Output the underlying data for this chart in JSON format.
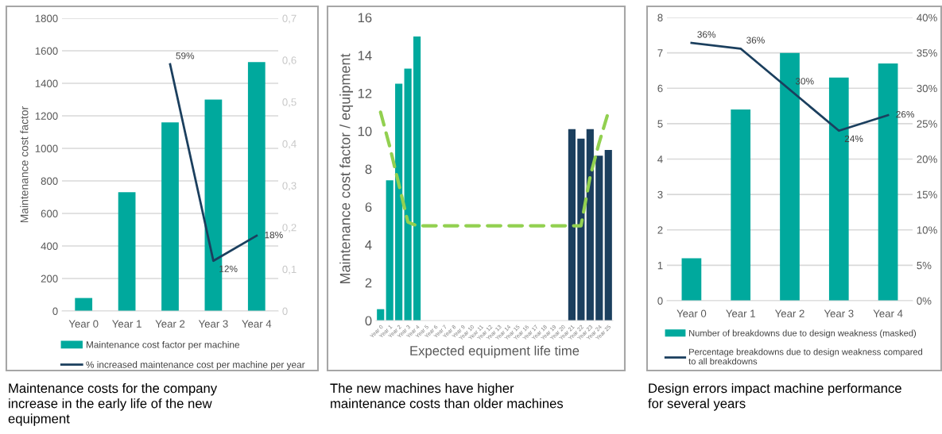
{
  "chart_data": [
    {
      "type": "bar",
      "categories": [
        "Year 0",
        "Year 1",
        "Year 2",
        "Year 3",
        "Year 4"
      ],
      "ylabel": "Maintenance cost factor",
      "ylim": [
        0,
        1800
      ],
      "yticks": [
        0,
        200,
        400,
        600,
        800,
        1000,
        1200,
        1400,
        1600,
        1800
      ],
      "y2lim": [
        0,
        0.7
      ],
      "y2ticks": [
        0,
        {
          "value": 0.1,
          "label": "0,1"
        },
        {
          "value": 0.2,
          "label": "0,2"
        },
        {
          "value": 0.3,
          "label": "0,3"
        },
        {
          "value": 0.4,
          "label": "0,4"
        },
        {
          "value": 0.5,
          "label": "0,5"
        },
        {
          "value": 0.6,
          "label": "0,6"
        },
        {
          "value": 0.7,
          "label": "0,7"
        }
      ],
      "grid": "y",
      "legend": "bottom",
      "series": [
        {
          "name": "Maintenance cost factor per machine",
          "color": "#00a99d",
          "values": [
            80,
            730,
            1160,
            1300,
            1530
          ]
        },
        {
          "name": "% increased maintenance cost per machine per year",
          "type": "line",
          "axis": "y2",
          "color": "#1b3f5e",
          "values": [
            null,
            null,
            0.59,
            0.12,
            0.18
          ],
          "value_labels": [
            null,
            null,
            "59%",
            "12%",
            "18%"
          ]
        }
      ],
      "annotations": [
        "Maintenance costs for the company\nincrease in the early life of the new\nequipment"
      ]
    },
    {
      "type": "bar",
      "categories": [
        "Year 0",
        "Year 1",
        "Year 2",
        "Year 3",
        "Year 4",
        "Year 5",
        "Year 6",
        "Year 7",
        "Year 8",
        "Year 9",
        "Year 10",
        "Year 11",
        "Year 12",
        "Year 13",
        "Year 14",
        "Year 15",
        "Year 16",
        "Year 17",
        "Year 18",
        "Year 19",
        "Year 20",
        "Year 21",
        "Year 22",
        "Year 23",
        "Year 24",
        "Year 25"
      ],
      "ylabel": "Maintenance cost factor / equipment",
      "xlabel": "Expected equipment life time",
      "ylim": [
        0,
        16
      ],
      "yticks": [
        0,
        2,
        4,
        6,
        8,
        10,
        12,
        14,
        16
      ],
      "grid": false,
      "legend": false,
      "series": [
        {
          "colors": [
            "#00a99d",
            "#00a99d",
            "#00a99d",
            "#00a99d",
            "#00a99d",
            null,
            null,
            null,
            null,
            null,
            null,
            null,
            null,
            null,
            null,
            null,
            null,
            null,
            null,
            null,
            null,
            "#1b3f5e",
            "#1b3f5e",
            "#1b3f5e",
            "#1b3f5e",
            "#1b3f5e"
          ],
          "values": [
            0.6,
            7.4,
            12.5,
            13.3,
            15,
            null,
            null,
            null,
            null,
            null,
            null,
            null,
            null,
            null,
            null,
            null,
            null,
            null,
            null,
            null,
            null,
            10.1,
            9.6,
            10.1,
            8.7,
            9
          ]
        },
        {
          "type": "line",
          "color": "#92d050",
          "line_style": "dashed",
          "values": [
            11,
            9.2,
            7.2,
            5.2,
            5,
            5,
            5,
            5,
            5,
            5,
            5,
            5,
            5,
            5,
            5,
            5,
            5,
            5,
            5,
            5,
            5,
            5,
            5,
            7.6,
            9.4,
            11
          ]
        }
      ],
      "annotations": [
        "The new machines have higher\nmaintenance costs than older machines"
      ]
    },
    {
      "type": "bar",
      "categories": [
        "Year 0",
        "Year 1",
        "Year 2",
        "Year 3",
        "Year 4"
      ],
      "ylim": [
        0,
        8
      ],
      "yticks": [
        0,
        1,
        2,
        3,
        4,
        5,
        6,
        7,
        8
      ],
      "y2lim": [
        0,
        40
      ],
      "y2ticks": [
        {
          "value": 0,
          "label": "0%"
        },
        {
          "value": 5,
          "label": "5%"
        },
        {
          "value": 10,
          "label": "10%"
        },
        {
          "value": 15,
          "label": "15%"
        },
        {
          "value": 20,
          "label": "20%"
        },
        {
          "value": 25,
          "label": "25%"
        },
        {
          "value": 30,
          "label": "30%"
        },
        {
          "value": 35,
          "label": "35%"
        },
        {
          "value": 40,
          "label": "40%"
        }
      ],
      "grid": "y",
      "legend": "bottom",
      "series": [
        {
          "name": "Number of breakdowns due to design weakness (masked)",
          "color": "#00a99d",
          "values": [
            1.2,
            5.4,
            7,
            6.3,
            6.7
          ]
        },
        {
          "name": "Percentage breakdowns due to design weakness compared\nto all breakdowns",
          "type": "line",
          "axis": "y2",
          "color": "#1b3f5e",
          "values": [
            36.4,
            35.6,
            29.8,
            24,
            26.2
          ],
          "value_labels": [
            "36%",
            "36%",
            "30%",
            "24%",
            "26%"
          ]
        }
      ],
      "annotations": [
        "Design errors impact machine performance\nfor several years"
      ]
    }
  ]
}
